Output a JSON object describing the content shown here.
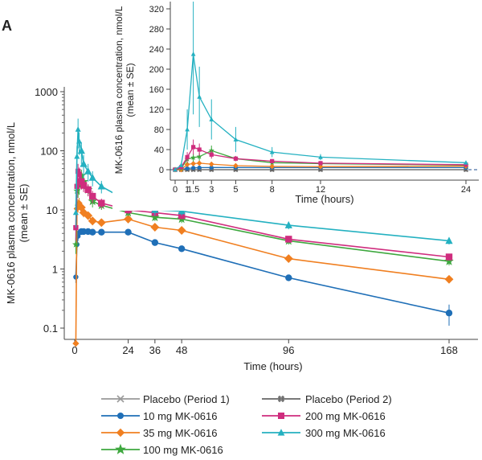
{
  "panel_label": "A",
  "chart_data": [
    {
      "type": "line",
      "name": "main",
      "yscale": "log",
      "xlabel": "Time (hours)",
      "ylabel_line1": "MK-0616 plasma concentration, nmol/L",
      "ylabel_line2": "(mean ± SE)",
      "xlim": [
        0,
        180
      ],
      "ylim": [
        0.05,
        1000
      ],
      "xticks": [
        0,
        24,
        36,
        48,
        96,
        168
      ],
      "xtick_labels": [
        "0",
        "24",
        "36",
        "48",
        "96",
        "168"
      ],
      "yticks": [
        0.1,
        1,
        10,
        100,
        1000
      ],
      "ytick_labels": [
        "0.1",
        "1",
        "10",
        "100",
        "1000"
      ],
      "series": [
        {
          "name": "10 mg MK-0616",
          "color": "#1f6fb7",
          "marker": "circle",
          "x": [
            0.5,
            1,
            1.5,
            2,
            3,
            4,
            6,
            8,
            12,
            24,
            36,
            48,
            96,
            168
          ],
          "y": [
            0.73,
            2.6,
            3.6,
            4.1,
            4.3,
            4.3,
            4.3,
            4.2,
            4.2,
            4.2,
            2.8,
            2.2,
            0.71,
            0.18
          ],
          "err": [
            0.15,
            0.5,
            0.6,
            0.5,
            0.4,
            0.4,
            0.3,
            0.3,
            0.3,
            0.3,
            0.25,
            0.2,
            0.08,
            0.07
          ]
        },
        {
          "name": "35 mg MK-0616",
          "color": "#f07f20",
          "marker": "diamond",
          "x": [
            0.5,
            1,
            1.5,
            2,
            3,
            4,
            6,
            8,
            12,
            24,
            36,
            48,
            96,
            168
          ],
          "y": [
            0.055,
            10.5,
            12.0,
            13.0,
            11.0,
            9.0,
            8.0,
            6.5,
            6.1,
            7.0,
            5.1,
            4.5,
            1.5,
            0.67
          ],
          "err": [
            0.01,
            3,
            3,
            3,
            2,
            1.5,
            1.2,
            1,
            0.8,
            0.8,
            0.6,
            0.5,
            0.2,
            0.08
          ]
        },
        {
          "name": "100 mg MK-0616",
          "color": "#3ea83f",
          "marker": "star",
          "x": [
            0.5,
            1,
            1.5,
            2,
            3,
            4,
            6,
            8,
            12,
            24,
            36,
            48,
            96,
            168
          ],
          "y": [
            2.6,
            21.0,
            24.0,
            26.0,
            38.0,
            30.0,
            22.0,
            14.0,
            12.0,
            9.0,
            7.5,
            7.0,
            3.0,
            1.35
          ],
          "err": [
            0.8,
            8,
            8,
            8,
            10,
            8,
            5,
            3,
            2,
            1.2,
            1,
            1,
            0.4,
            0.2
          ]
        },
        {
          "name": "200 mg MK-0616",
          "color": "#cf2d7e",
          "marker": "square",
          "x": [
            0.5,
            1,
            1.5,
            2,
            3,
            4,
            6,
            8,
            12,
            24,
            36,
            48,
            96,
            168
          ],
          "y": [
            5.0,
            25.0,
            45.0,
            40.0,
            30.0,
            26.0,
            22.0,
            17.0,
            13.0,
            10.0,
            9.0,
            8.0,
            3.2,
            1.6
          ],
          "err": [
            2,
            10,
            15,
            12,
            8,
            6,
            5,
            4,
            2.5,
            1.5,
            1.2,
            1,
            0.4,
            0.2
          ]
        },
        {
          "name": "300 mg MK-0616",
          "color": "#24b1c1",
          "marker": "triangle",
          "x": [
            0.5,
            1,
            1.5,
            2,
            3,
            4,
            6,
            8,
            12,
            24,
            36,
            48,
            96,
            168
          ],
          "y": [
            9.0,
            80.0,
            230.0,
            145.0,
            100.0,
            60.0,
            45.0,
            35.0,
            25.0,
            14.0,
            10.0,
            9.5,
            5.5,
            3.0
          ],
          "err": [
            4,
            40,
            120,
            60,
            40,
            25,
            15,
            10,
            6,
            3,
            2,
            1.5,
            0.8,
            0.4
          ]
        }
      ]
    },
    {
      "type": "line",
      "name": "inset",
      "yscale": "linear",
      "xlabel": "Time (hours)",
      "ylabel_line1": "MK-0616 plasma concentration, nmol/L",
      "ylabel_line2": "(mean ± SE)",
      "xlim": [
        -0.5,
        24.5
      ],
      "ylim": [
        -20,
        340
      ],
      "xticks": [
        0,
        1,
        1.5,
        3,
        5,
        8,
        12,
        24
      ],
      "xtick_labels": [
        "0",
        "1",
        "1.5",
        "3",
        "5",
        "8",
        "12",
        "24"
      ],
      "yticks": [
        0,
        40,
        80,
        120,
        160,
        200,
        240,
        280,
        320
      ],
      "ytick_labels": [
        "0",
        "40",
        "80",
        "120",
        "160",
        "200",
        "240",
        "280",
        "320"
      ],
      "reference_line": 0,
      "series": [
        {
          "name": "Placebo (Period 1)",
          "color": "#999999",
          "marker": "x",
          "x": [
            0,
            0.5,
            1,
            1.5,
            2,
            3,
            5,
            8,
            12,
            24
          ],
          "y": [
            0,
            0,
            0,
            0,
            0,
            0,
            0,
            0,
            0,
            0
          ],
          "err": []
        },
        {
          "name": "Placebo (Period 2)",
          "color": "#666666",
          "marker": "hash",
          "x": [
            0,
            0.5,
            1,
            1.5,
            2,
            3,
            5,
            8,
            12,
            24
          ],
          "y": [
            0,
            0,
            0,
            0,
            0,
            0,
            0,
            0,
            0,
            0
          ],
          "err": []
        },
        {
          "name": "10 mg MK-0616",
          "color": "#1f6fb7",
          "marker": "circle",
          "x": [
            0,
            0.5,
            1,
            1.5,
            2,
            3,
            5,
            8,
            12,
            24
          ],
          "y": [
            0,
            0.7,
            2.6,
            3.6,
            4.1,
            4.3,
            4.3,
            4.2,
            4.2,
            4.2
          ],
          "err": []
        },
        {
          "name": "35 mg MK-0616",
          "color": "#f07f20",
          "marker": "diamond",
          "x": [
            0,
            0.5,
            1,
            1.5,
            2,
            3,
            5,
            8,
            12,
            24
          ],
          "y": [
            0,
            0.1,
            10.5,
            12.0,
            13.0,
            11.0,
            8.0,
            6.5,
            6.1,
            7.0
          ],
          "err": []
        },
        {
          "name": "100 mg MK-0616",
          "color": "#3ea83f",
          "marker": "star",
          "x": [
            0,
            0.5,
            1,
            1.5,
            2,
            3,
            5,
            8,
            12,
            24
          ],
          "y": [
            0,
            2.6,
            21.0,
            24.0,
            26.0,
            38.0,
            22.0,
            14.0,
            12.0,
            9.0
          ],
          "err": [
            0,
            1,
            8,
            8,
            8,
            10,
            5,
            3,
            2,
            1.2
          ]
        },
        {
          "name": "200 mg MK-0616",
          "color": "#cf2d7e",
          "marker": "square",
          "x": [
            0,
            0.5,
            1,
            1.5,
            2,
            3,
            5,
            8,
            12,
            24
          ],
          "y": [
            0,
            5.0,
            25.0,
            45.0,
            40.0,
            30.0,
            22.0,
            17.0,
            13.0,
            10.0
          ],
          "err": [
            0,
            2,
            10,
            15,
            12,
            8,
            5,
            4,
            2.5,
            1.5
          ]
        },
        {
          "name": "300 mg MK-0616",
          "color": "#24b1c1",
          "marker": "triangle",
          "x": [
            0,
            0.5,
            1,
            1.5,
            2,
            3,
            5,
            8,
            12,
            24
          ],
          "y": [
            0,
            9.0,
            80.0,
            230.0,
            145.0,
            100.0,
            60.0,
            35.0,
            25.0,
            14.0
          ],
          "err": [
            0,
            4,
            40,
            120,
            60,
            40,
            25,
            10,
            6,
            3
          ]
        }
      ]
    }
  ],
  "legend": [
    {
      "label": "Placebo (Period 1)",
      "color": "#999999",
      "marker": "x"
    },
    {
      "label": "Placebo (Period 2)",
      "color": "#666666",
      "marker": "hash"
    },
    {
      "label": "10 mg MK-0616",
      "color": "#1f6fb7",
      "marker": "circle"
    },
    {
      "label": "200 mg MK-0616",
      "color": "#cf2d7e",
      "marker": "square"
    },
    {
      "label": "35 mg MK-0616",
      "color": "#f07f20",
      "marker": "diamond"
    },
    {
      "label": "300 mg MK-0616",
      "color": "#24b1c1",
      "marker": "triangle"
    },
    {
      "label": "100 mg MK-0616",
      "color": "#3ea83f",
      "marker": "star"
    }
  ]
}
